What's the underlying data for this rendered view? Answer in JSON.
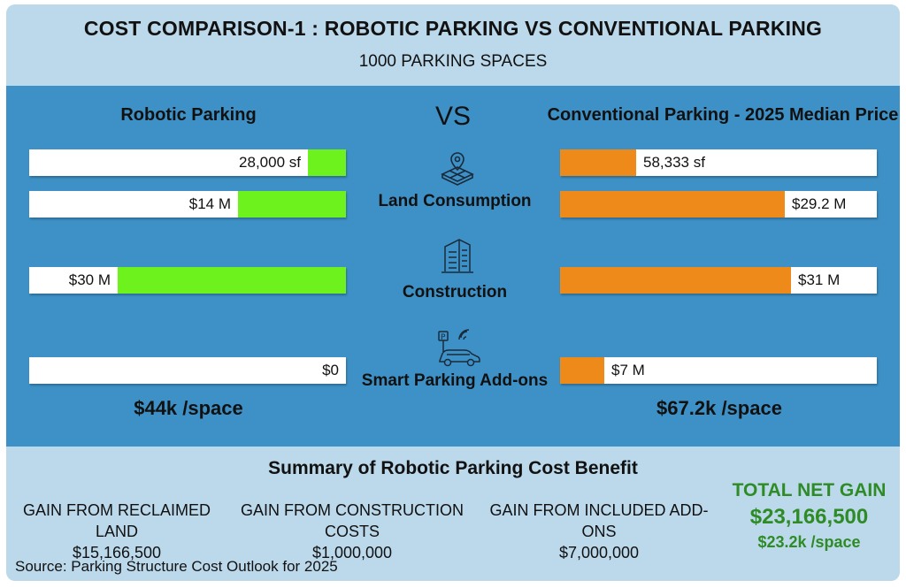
{
  "title": "COST COMPARISON-1 : ROBOTIC PARKING VS CONVENTIONAL PARKING",
  "subtitle": "1000 PARKING SPACES",
  "vs": "VS",
  "left_heading": "Robotic Parking",
  "right_heading": "Conventional Parking - 2025 Median Price",
  "categories": [
    "Land Consumption",
    "Construction",
    "Smart Parking Add-ons"
  ],
  "icons": [
    "map-pin-grid-icon",
    "building-icon",
    "smart-car-icon"
  ],
  "colors": {
    "robotic": "#6df21e",
    "conventional": "#ee8a1a",
    "panel": "#3e91c6",
    "background": "#bcd9ec",
    "total": "#2e8b25"
  },
  "chart_data": {
    "type": "bar",
    "orientation": "horizontal-mirrored",
    "series": [
      {
        "name": "Robotic Parking",
        "bars": [
          {
            "category": "Land Consumption",
            "metric": "area",
            "value": 28000,
            "label": "28,000 sf",
            "fill_fraction": 0.12
          },
          {
            "category": "Land Consumption",
            "metric": "cost",
            "value": 14,
            "label": "$14 M",
            "fill_fraction": 0.34
          },
          {
            "category": "Construction",
            "metric": "cost",
            "value": 30,
            "label": "$30 M",
            "fill_fraction": 0.72
          },
          {
            "category": "Smart Parking Add-ons",
            "metric": "cost",
            "value": 0,
            "label": "$0",
            "fill_fraction": 0
          }
        ],
        "per_space": "$44k /space"
      },
      {
        "name": "Conventional Parking - 2025 Median Price",
        "bars": [
          {
            "category": "Land Consumption",
            "metric": "area",
            "value": 58333,
            "label": "58,333 sf",
            "fill_fraction": 0.24
          },
          {
            "category": "Land Consumption",
            "metric": "cost",
            "value": 29.2,
            "label": "$29.2 M",
            "fill_fraction": 0.71
          },
          {
            "category": "Construction",
            "metric": "cost",
            "value": 31,
            "label": "$31 M",
            "fill_fraction": 0.73
          },
          {
            "category": "Smart Parking Add-ons",
            "metric": "cost",
            "value": 7,
            "label": "$7 M",
            "fill_fraction": 0.14
          }
        ],
        "per_space": "$67.2k /space"
      }
    ]
  },
  "summary": {
    "title": "Summary of Robotic Parking Cost Benefit",
    "gains": [
      {
        "label": "GAIN FROM RECLAIMED LAND",
        "value": "$15,166,500"
      },
      {
        "label": "GAIN FROM CONSTRUCTION COSTS",
        "value": "$1,000,000"
      },
      {
        "label": "GAIN FROM INCLUDED ADD-ONS",
        "value": "$7,000,000"
      }
    ],
    "total_label": "TOTAL NET GAIN",
    "total_value": "$23,166,500",
    "total_per_space": "$23.2k /space"
  },
  "source": "Source: Parking Structure Cost Outlook for 2025"
}
